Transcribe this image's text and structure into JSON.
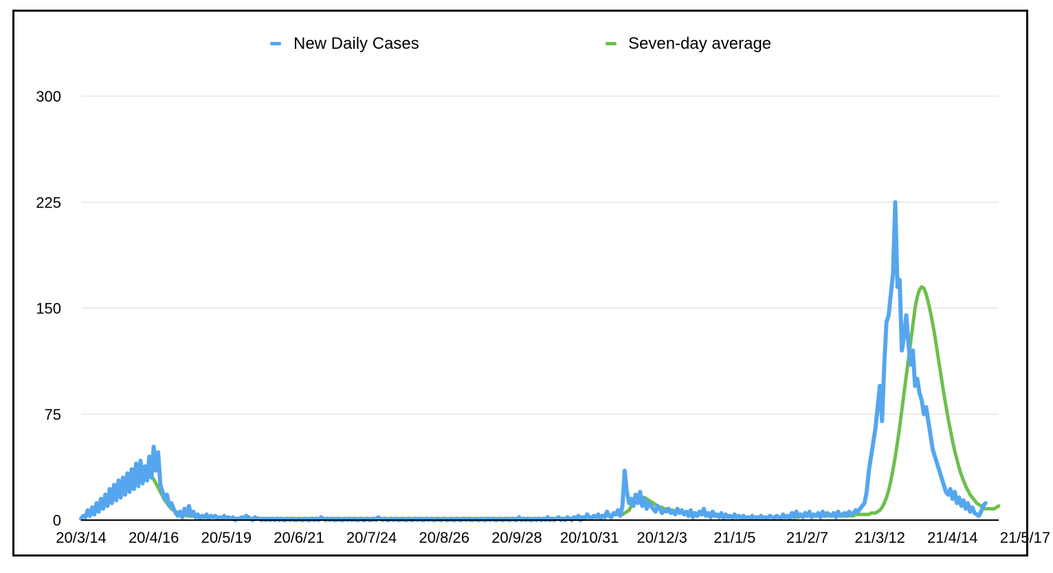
{
  "chart_data": {
    "type": "line",
    "legend": {
      "placement": "top-center"
    },
    "grid": true,
    "ylim": [
      0,
      300
    ],
    "yticks": [
      0,
      75,
      150,
      225,
      300
    ],
    "xtick_labels": [
      "20/3/14",
      "20/4/16",
      "20/5/19",
      "20/6/21",
      "20/7/24",
      "20/8/26",
      "20/9/28",
      "20/10/31",
      "20/12/3",
      "21/1/5",
      "21/2/7",
      "21/3/12",
      "21/4/14",
      "21/5/17"
    ],
    "x_start": "2020-03-14",
    "series": [
      {
        "name": "New Daily Cases",
        "color": "#55a6ef",
        "values": [
          1,
          3,
          2,
          7,
          3,
          9,
          4,
          12,
          6,
          15,
          8,
          18,
          10,
          22,
          12,
          25,
          14,
          28,
          16,
          30,
          18,
          33,
          20,
          36,
          22,
          40,
          24,
          42,
          26,
          38,
          28,
          45,
          30,
          52,
          35,
          48,
          25,
          20,
          15,
          18,
          10,
          12,
          8,
          5,
          3,
          6,
          2,
          8,
          4,
          10,
          3,
          6,
          2,
          4,
          1,
          3,
          2,
          4,
          1,
          3,
          2,
          3,
          1,
          2,
          1,
          3,
          1,
          2,
          1,
          2,
          0,
          1,
          1,
          2,
          1,
          3,
          2,
          1,
          0,
          2,
          1,
          1,
          0,
          1,
          0,
          1,
          0,
          1,
          0,
          1,
          0,
          1,
          0,
          0,
          1,
          0,
          1,
          0,
          0,
          1,
          0,
          0,
          1,
          0,
          0,
          1,
          0,
          1,
          0,
          2,
          1,
          0,
          1,
          0,
          1,
          0,
          0,
          1,
          0,
          0,
          1,
          0,
          1,
          0,
          1,
          0,
          0,
          1,
          0,
          0,
          1,
          0,
          0,
          1,
          0,
          2,
          1,
          0,
          1,
          0,
          0,
          1,
          0,
          1,
          0,
          0,
          1,
          0,
          0,
          1,
          0,
          0,
          1,
          0,
          1,
          0,
          0,
          1,
          0,
          1,
          0,
          0,
          1,
          0,
          0,
          1,
          0,
          0,
          1,
          0,
          0,
          1,
          0,
          0,
          1,
          0,
          1,
          0,
          0,
          1,
          0,
          0,
          1,
          0,
          0,
          1,
          0,
          1,
          0,
          0,
          1,
          0,
          0,
          1,
          0,
          0,
          1,
          0,
          0,
          2,
          0,
          1,
          0,
          1,
          0,
          0,
          1,
          0,
          1,
          0,
          1,
          0,
          2,
          0,
          1,
          0,
          1,
          2,
          0,
          1,
          0,
          2,
          1,
          0,
          2,
          1,
          3,
          0,
          2,
          1,
          4,
          2,
          1,
          3,
          2,
          4,
          1,
          3,
          2,
          6,
          3,
          2,
          5,
          4,
          7,
          3,
          10,
          35,
          20,
          12,
          15,
          10,
          18,
          12,
          20,
          10,
          15,
          8,
          12,
          10,
          8,
          6,
          10,
          8,
          5,
          7,
          6,
          8,
          5,
          6,
          4,
          8,
          5,
          7,
          4,
          6,
          3,
          7,
          2,
          5,
          3,
          6,
          4,
          8,
          3,
          5,
          2,
          6,
          3,
          4,
          2,
          5,
          1,
          4,
          2,
          3,
          1,
          4,
          2,
          3,
          1,
          3,
          1,
          2,
          1,
          3,
          1,
          2,
          1,
          3,
          1,
          2,
          1,
          3,
          2,
          1,
          3,
          2,
          1,
          4,
          2,
          3,
          1,
          5,
          2,
          6,
          3,
          4,
          2,
          5,
          3,
          6,
          2,
          4,
          3,
          5,
          2,
          6,
          3,
          5,
          4,
          3,
          5,
          2,
          6,
          3,
          4,
          5,
          3,
          6,
          4,
          5,
          7,
          6,
          8,
          10,
          12,
          20,
          35,
          45,
          55,
          65,
          80,
          95,
          70,
          110,
          140,
          145,
          160,
          175,
          225,
          165,
          170,
          120,
          130,
          145,
          125,
          110,
          120,
          95,
          100,
          90,
          85,
          75,
          80,
          70,
          60,
          50,
          45,
          40,
          35,
          30,
          25,
          20,
          18,
          22,
          15,
          20,
          12,
          16,
          10,
          14,
          8,
          12,
          6,
          9,
          5,
          4,
          3,
          6,
          10,
          12
        ]
      },
      {
        "name": "Seven-day average",
        "color": "#6dbf4e",
        "values": [
          1,
          2,
          3,
          4,
          5,
          6,
          7,
          8,
          9,
          10,
          11,
          13,
          14,
          15,
          16,
          18,
          19,
          20,
          22,
          23,
          25,
          26,
          27,
          28,
          29,
          30,
          31,
          32,
          33,
          34,
          34,
          33,
          31,
          29,
          26,
          23,
          20,
          17,
          14,
          12,
          10,
          8,
          7,
          6,
          5,
          5,
          4,
          4,
          3,
          3,
          3,
          3,
          2,
          2,
          2,
          2,
          2,
          2,
          2,
          2,
          2,
          2,
          1,
          1,
          1,
          1,
          1,
          1,
          1,
          1,
          1,
          1,
          1,
          1,
          1,
          1,
          1,
          1,
          1,
          1,
          1,
          1,
          1,
          1,
          1,
          1,
          1,
          1,
          1,
          1,
          1,
          1,
          1,
          1,
          1,
          1,
          1,
          1,
          1,
          1,
          1,
          1,
          1,
          1,
          1,
          1,
          1,
          1,
          1,
          1,
          1,
          1,
          1,
          1,
          1,
          1,
          1,
          1,
          1,
          1,
          1,
          1,
          1,
          1,
          1,
          1,
          1,
          1,
          1,
          1,
          1,
          1,
          1,
          1,
          1,
          1,
          1,
          1,
          1,
          1,
          1,
          1,
          1,
          1,
          1,
          1,
          1,
          1,
          1,
          1,
          1,
          1,
          1,
          1,
          1,
          1,
          1,
          1,
          1,
          1,
          1,
          1,
          1,
          1,
          1,
          1,
          1,
          1,
          1,
          1,
          1,
          1,
          1,
          1,
          1,
          1,
          1,
          1,
          1,
          1,
          1,
          1,
          1,
          1,
          1,
          1,
          1,
          1,
          1,
          1,
          1,
          1,
          1,
          1,
          1,
          1,
          1,
          1,
          1,
          1,
          1,
          1,
          1,
          1,
          1,
          1,
          1,
          1,
          1,
          1,
          1,
          1,
          1,
          1,
          1,
          1,
          1,
          1,
          1,
          1,
          1,
          1,
          1,
          1,
          2,
          2,
          2,
          2,
          2,
          2,
          2,
          2,
          2,
          2,
          2,
          2,
          3,
          3,
          3,
          3,
          3,
          3,
          4,
          4,
          4,
          4,
          4,
          5,
          6,
          7,
          10,
          12,
          13,
          14,
          15,
          16,
          16,
          15,
          14,
          13,
          12,
          11,
          10,
          9,
          9,
          8,
          8,
          7,
          7,
          7,
          6,
          6,
          6,
          6,
          5,
          5,
          5,
          5,
          5,
          5,
          4,
          4,
          4,
          4,
          4,
          4,
          4,
          3,
          3,
          3,
          3,
          3,
          3,
          3,
          3,
          3,
          2,
          2,
          2,
          2,
          2,
          2,
          2,
          2,
          2,
          2,
          2,
          2,
          2,
          2,
          2,
          2,
          2,
          2,
          2,
          2,
          2,
          2,
          2,
          2,
          2,
          2,
          2,
          2,
          2,
          2,
          2,
          3,
          3,
          3,
          3,
          3,
          3,
          3,
          3,
          3,
          3,
          3,
          3,
          3,
          3,
          3,
          3,
          3,
          3,
          3,
          3,
          3,
          3,
          3,
          3,
          3,
          4,
          4,
          4,
          4,
          4,
          4,
          4,
          5,
          5,
          5,
          6,
          7,
          9,
          12,
          16,
          21,
          28,
          36,
          45,
          55,
          66,
          78,
          90,
          102,
          114,
          126,
          138,
          150,
          158,
          163,
          165,
          164,
          160,
          154,
          147,
          139,
          130,
          120,
          110,
          100,
          90,
          81,
          72,
          64,
          56,
          49,
          43,
          37,
          32,
          28,
          24,
          21,
          18,
          16,
          14,
          12,
          11,
          10,
          9,
          8,
          8,
          8,
          8,
          8,
          9,
          10
        ]
      }
    ]
  }
}
